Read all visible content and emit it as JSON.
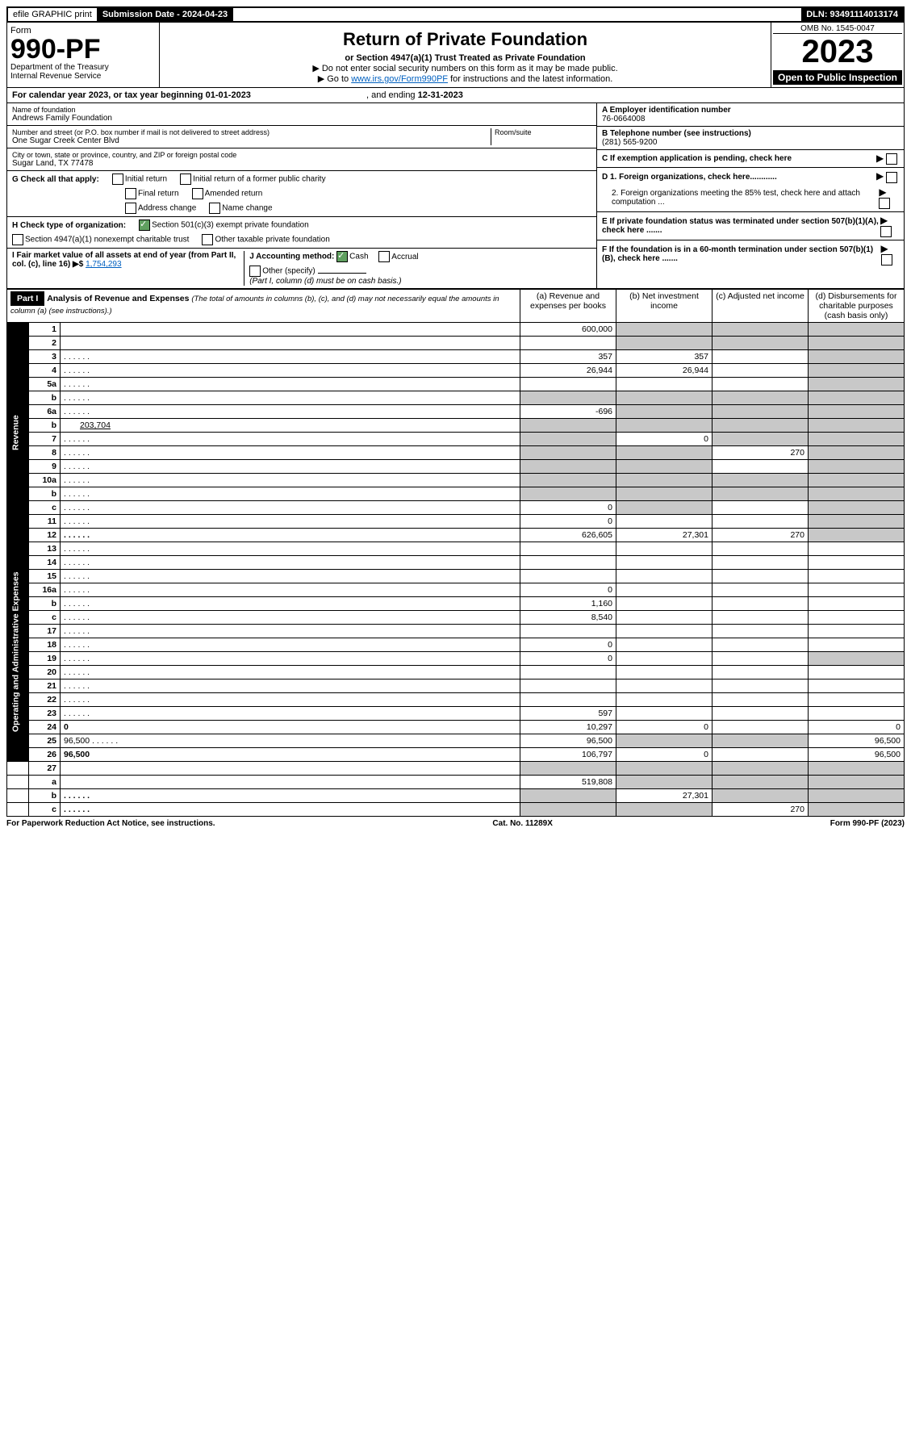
{
  "top": {
    "efile": "efile GRAPHIC print",
    "sub_lbl": "Submission Date - 2024-04-23",
    "dln": "DLN: 93491114013174"
  },
  "header": {
    "form_lbl": "Form",
    "form": "990-PF",
    "dept": "Department of the Treasury",
    "irs": "Internal Revenue Service",
    "title": "Return of Private Foundation",
    "sub": "or Section 4947(a)(1) Trust Treated as Private Foundation",
    "inst1": "▶ Do not enter social security numbers on this form as it may be made public.",
    "inst2": "▶ Go to ",
    "inst2_link": "www.irs.gov/Form990PF",
    "inst2b": " for instructions and the latest information.",
    "omb": "OMB No. 1545-0047",
    "year": "2023",
    "open": "Open to Public Inspection"
  },
  "cal_year": {
    "lbl": "For calendar year 2023, or tax year beginning ",
    "begin": "01-01-2023",
    "mid": " , and ending ",
    "end": "12-31-2023"
  },
  "info": {
    "name_lbl": "Name of foundation",
    "name": "Andrews Family Foundation",
    "addr_lbl": "Number and street (or P.O. box number if mail is not delivered to street address)",
    "addr": "One Sugar Creek Center Blvd",
    "room_lbl": "Room/suite",
    "city_lbl": "City or town, state or province, country, and ZIP or foreign postal code",
    "city": "Sugar Land, TX  77478",
    "ein_lbl": "A Employer identification number",
    "ein": "76-0664008",
    "tel_lbl": "B Telephone number (see instructions)",
    "tel": "(281) 565-9200",
    "c": "C If exemption application is pending, check here",
    "d1": "D 1. Foreign organizations, check here............",
    "d2": "2. Foreign organizations meeting the 85% test, check here and attach computation ...",
    "e": "E  If private foundation status was terminated under section 507(b)(1)(A), check here .......",
    "f": "F  If the foundation is in a 60-month termination under section 507(b)(1)(B), check here .......",
    "g_lbl": "G Check all that apply:",
    "g_opts": [
      "Initial return",
      "Initial return of a former public charity",
      "Final return",
      "Amended return",
      "Address change",
      "Name change"
    ],
    "h_lbl": "H Check type of organization:",
    "h1": "Section 501(c)(3) exempt private foundation",
    "h2": "Section 4947(a)(1) nonexempt charitable trust",
    "h3": "Other taxable private foundation",
    "i_lbl": "I Fair market value of all assets at end of year (from Part II, col. (c), line 16) ▶$ ",
    "i_val": "1,754,293",
    "j_lbl": "J Accounting method:",
    "j_cash": "Cash",
    "j_accr": "Accrual",
    "j_oth": "Other (specify)",
    "j_note": "(Part I, column (d) must be on cash basis.)"
  },
  "part1": {
    "hdr": "Part I",
    "title": "Analysis of Revenue and Expenses ",
    "note": "(The total of amounts in columns (b), (c), and (d) may not necessarily equal the amounts in column (a) (see instructions).)",
    "cols": {
      "a": "(a) Revenue and expenses per books",
      "b": "(b) Net investment income",
      "c": "(c) Adjusted net income",
      "d": "(d) Disbursements for charitable purposes (cash basis only)"
    }
  },
  "sections": [
    "Revenue",
    "Operating and Administrative Expenses"
  ],
  "rows": [
    {
      "sec": 0,
      "n": "1",
      "d": "",
      "a": "600,000",
      "b": "",
      "c": "",
      "sb": true,
      "sc": true,
      "sd": true
    },
    {
      "sec": 0,
      "n": "2",
      "d": "",
      "a": "",
      "b": "",
      "c": "",
      "sb": true,
      "sc": true,
      "sd": true
    },
    {
      "sec": 0,
      "n": "3",
      "d": "",
      "a": "357",
      "b": "357",
      "c": "",
      "sd": true
    },
    {
      "sec": 0,
      "n": "4",
      "d": "",
      "a": "26,944",
      "b": "26,944",
      "c": "",
      "sd": true
    },
    {
      "sec": 0,
      "n": "5a",
      "d": "",
      "a": "",
      "b": "",
      "c": "",
      "sd": true
    },
    {
      "sec": 0,
      "n": "b",
      "d": "",
      "a": "",
      "b": "",
      "c": "",
      "sa": true,
      "sb": true,
      "sc": true,
      "sd": true,
      "inner": true
    },
    {
      "sec": 0,
      "n": "6a",
      "d": "",
      "a": "-696",
      "b": "",
      "c": "",
      "sb": true,
      "sc": true,
      "sd": true
    },
    {
      "sec": 0,
      "n": "b",
      "d": "",
      "iv": "203,704",
      "a": "",
      "b": "",
      "c": "",
      "sa": true,
      "sb": true,
      "sc": true,
      "sd": true,
      "inner": true
    },
    {
      "sec": 0,
      "n": "7",
      "d": "",
      "a": "",
      "b": "0",
      "c": "",
      "sa": true,
      "sc": true,
      "sd": true
    },
    {
      "sec": 0,
      "n": "8",
      "d": "",
      "a": "",
      "b": "",
      "c": "270",
      "sa": true,
      "sb": true,
      "sd": true
    },
    {
      "sec": 0,
      "n": "9",
      "d": "",
      "a": "",
      "b": "",
      "c": "",
      "sa": true,
      "sb": true,
      "sd": true
    },
    {
      "sec": 0,
      "n": "10a",
      "d": "",
      "a": "",
      "b": "",
      "c": "",
      "sa": true,
      "sb": true,
      "sc": true,
      "sd": true,
      "inner": true
    },
    {
      "sec": 0,
      "n": "b",
      "d": "",
      "a": "",
      "b": "",
      "c": "",
      "sa": true,
      "sb": true,
      "sc": true,
      "sd": true,
      "inner": true
    },
    {
      "sec": 0,
      "n": "c",
      "d": "",
      "a": "0",
      "b": "",
      "c": "",
      "sb": true,
      "sd": true
    },
    {
      "sec": 0,
      "n": "11",
      "d": "",
      "a": "0",
      "b": "",
      "c": "",
      "sd": true
    },
    {
      "sec": 0,
      "n": "12",
      "d": "",
      "a": "626,605",
      "b": "27,301",
      "c": "270",
      "bold": true,
      "sd": true
    },
    {
      "sec": 1,
      "n": "13",
      "d": "",
      "a": "",
      "b": "",
      "c": ""
    },
    {
      "sec": 1,
      "n": "14",
      "d": "",
      "a": "",
      "b": "",
      "c": ""
    },
    {
      "sec": 1,
      "n": "15",
      "d": "",
      "a": "",
      "b": "",
      "c": ""
    },
    {
      "sec": 1,
      "n": "16a",
      "d": "",
      "a": "0",
      "b": "",
      "c": ""
    },
    {
      "sec": 1,
      "n": "b",
      "d": "",
      "a": "1,160",
      "b": "",
      "c": ""
    },
    {
      "sec": 1,
      "n": "c",
      "d": "",
      "a": "8,540",
      "b": "",
      "c": ""
    },
    {
      "sec": 1,
      "n": "17",
      "d": "",
      "a": "",
      "b": "",
      "c": ""
    },
    {
      "sec": 1,
      "n": "18",
      "d": "",
      "a": "0",
      "b": "",
      "c": ""
    },
    {
      "sec": 1,
      "n": "19",
      "d": "",
      "a": "0",
      "b": "",
      "c": "",
      "sd": true
    },
    {
      "sec": 1,
      "n": "20",
      "d": "",
      "a": "",
      "b": "",
      "c": ""
    },
    {
      "sec": 1,
      "n": "21",
      "d": "",
      "a": "",
      "b": "",
      "c": ""
    },
    {
      "sec": 1,
      "n": "22",
      "d": "",
      "a": "",
      "b": "",
      "c": ""
    },
    {
      "sec": 1,
      "n": "23",
      "d": "",
      "a": "597",
      "b": "",
      "c": ""
    },
    {
      "sec": 1,
      "n": "24",
      "d": "0",
      "a": "10,297",
      "b": "0",
      "c": "",
      "bold": true
    },
    {
      "sec": 1,
      "n": "25",
      "d": "96,500",
      "a": "96,500",
      "b": "",
      "c": "",
      "sb": true,
      "sc": true
    },
    {
      "sec": 1,
      "n": "26",
      "d": "96,500",
      "a": "106,797",
      "b": "0",
      "c": "",
      "bold": true
    },
    {
      "sec": -1,
      "n": "27",
      "d": "",
      "a": "",
      "b": "",
      "c": "",
      "sa": true,
      "sb": true,
      "sc": true,
      "sd": true
    },
    {
      "sec": -1,
      "n": "a",
      "d": "",
      "a": "519,808",
      "b": "",
      "c": "",
      "bold": true,
      "sb": true,
      "sc": true,
      "sd": true
    },
    {
      "sec": -1,
      "n": "b",
      "d": "",
      "a": "",
      "b": "27,301",
      "c": "",
      "bold": true,
      "sa": true,
      "sc": true,
      "sd": true
    },
    {
      "sec": -1,
      "n": "c",
      "d": "",
      "a": "",
      "b": "",
      "c": "270",
      "bold": true,
      "sa": true,
      "sb": true,
      "sd": true
    }
  ],
  "footer": {
    "left": "For Paperwork Reduction Act Notice, see instructions.",
    "mid": "Cat. No. 11289X",
    "right": "Form 990-PF (2023)"
  }
}
